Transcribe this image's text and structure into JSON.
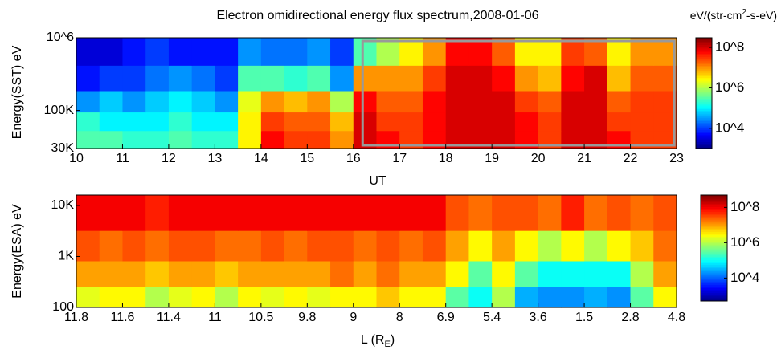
{
  "chart_data": [
    {
      "type": "heatmap",
      "title": "Electron omidirectional energy flux spectrum,2008-01-06",
      "units": "eV/(str-cm",
      "units_sup": "2",
      "units_end": "-s-eV)",
      "xlabel": "UT",
      "ylabel": "Energy(SST) eV",
      "log_y": true,
      "xlim": [
        10,
        23
      ],
      "xticks": [
        10,
        11,
        12,
        13,
        14,
        15,
        16,
        17,
        18,
        19,
        20,
        21,
        22,
        23
      ],
      "ylim": [
        30000,
        1000000
      ],
      "yticks": [
        {
          "value": 30000,
          "label": "30K"
        },
        {
          "value": 100000,
          "label": "100K"
        },
        {
          "value": 1000000,
          "label": "10^6"
        }
      ],
      "highlight_x": [
        16.2,
        22.95
      ],
      "x": [
        10.25,
        10.75,
        11.25,
        11.75,
        12.25,
        12.75,
        13.25,
        13.75,
        14.25,
        14.75,
        15.25,
        15.75,
        16.25,
        16.75,
        17.25,
        17.75,
        18.25,
        18.75,
        19.25,
        19.75,
        20.25,
        20.75,
        21.25,
        21.75,
        22.25,
        22.75
      ],
      "y": [
        40000,
        70000,
        130000,
        270000,
        650000
      ],
      "z": [
        [
          300000.0,
          300000.0,
          200000.0,
          200000.0,
          300000.0,
          200000.0,
          200000.0,
          3000000.0,
          60000000.0,
          30000000.0,
          30000000.0,
          10000000.0,
          100000000.0,
          60000000.0,
          30000000.0,
          60000000.0,
          100000000.0,
          100000000.0,
          100000000.0,
          60000000.0,
          30000000.0,
          100000000.0,
          100000000.0,
          60000000.0,
          30000000.0,
          30000000.0
        ],
        [
          200000.0,
          100000.0,
          100000.0,
          100000.0,
          200000.0,
          100000.0,
          100000.0,
          3000000.0,
          30000000.0,
          20000000.0,
          20000000.0,
          6000000.0,
          100000000.0,
          30000000.0,
          30000000.0,
          60000000.0,
          100000000.0,
          100000000.0,
          100000000.0,
          60000000.0,
          30000000.0,
          100000000.0,
          100000000.0,
          30000000.0,
          30000000.0,
          30000000.0
        ],
        [
          30000.0,
          60000.0,
          30000.0,
          60000.0,
          100000.0,
          60000.0,
          30000.0,
          2000000.0,
          10000000.0,
          6000000.0,
          10000000.0,
          1000000.0,
          60000000.0,
          20000000.0,
          20000000.0,
          60000000.0,
          100000000.0,
          100000000.0,
          100000000.0,
          30000000.0,
          20000000.0,
          100000000.0,
          100000000.0,
          20000000.0,
          30000000.0,
          30000000.0
        ],
        [
          6000.0,
          10000.0,
          10000.0,
          20000.0,
          30000.0,
          20000.0,
          10000.0,
          300000.0,
          300000.0,
          200000.0,
          300000.0,
          30000.0,
          10000000.0,
          10000000.0,
          10000000.0,
          30000000.0,
          100000000.0,
          100000000.0,
          60000000.0,
          10000000.0,
          6000000.0,
          60000000.0,
          100000000.0,
          6000000.0,
          20000000.0,
          20000000.0
        ],
        [
          3000.0,
          3000.0,
          6000.0,
          10000.0,
          6000.0,
          6000.0,
          6000.0,
          30000.0,
          20000.0,
          20000.0,
          30000.0,
          10000.0,
          300000.0,
          1000000.0,
          3000000.0,
          10000000.0,
          60000000.0,
          60000000.0,
          20000000.0,
          3000000.0,
          3000000.0,
          30000000.0,
          20000000.0,
          3000000.0,
          10000000.0,
          10000000.0
        ]
      ],
      "zlim": [
        1000,
        300000000
      ],
      "zticks": [
        {
          "value": 10000,
          "label": "10^4"
        },
        {
          "value": 1000000,
          "label": "10^6"
        },
        {
          "value": 100000000,
          "label": "10^8"
        }
      ]
    },
    {
      "type": "heatmap",
      "xlabel": "L (R",
      "xlabel_sub": "E",
      "xlabel_end": ")",
      "ylabel": "Energy(ESA) eV",
      "log_y": true,
      "xlim": [
        10,
        23
      ],
      "xticks": [
        {
          "value": 10,
          "label": "11.8"
        },
        {
          "value": 11,
          "label": "11.6"
        },
        {
          "value": 12,
          "label": "11.4"
        },
        {
          "value": 13,
          "label": "11"
        },
        {
          "value": 14,
          "label": "10.5"
        },
        {
          "value": 15,
          "label": "9.8"
        },
        {
          "value": 16,
          "label": "9"
        },
        {
          "value": 17,
          "label": "8"
        },
        {
          "value": 18,
          "label": "6.9"
        },
        {
          "value": 19,
          "label": "5.4"
        },
        {
          "value": 20,
          "label": "3.6"
        },
        {
          "value": 21,
          "label": "1.5"
        },
        {
          "value": 22,
          "label": "2.8"
        },
        {
          "value": 23,
          "label": "4.8"
        }
      ],
      "ylim": [
        100,
        16000
      ],
      "yticks": [
        100,
        {
          "value": 1000,
          "label": "1K"
        },
        {
          "value": 10000,
          "label": "10K"
        }
      ],
      "x": [
        10.25,
        10.75,
        11.25,
        11.75,
        12.25,
        12.75,
        13.25,
        13.75,
        14.25,
        14.75,
        15.25,
        15.75,
        16.25,
        16.75,
        17.25,
        17.75,
        18.25,
        18.75,
        19.25,
        19.75,
        20.25,
        20.75,
        21.25,
        21.75,
        22.25,
        22.75
      ],
      "y": [
        150,
        450,
        1500,
        7000
      ],
      "z": [
        [
          2000000.0,
          3000000.0,
          3000000.0,
          1000000.0,
          2000000.0,
          3000000.0,
          1000000.0,
          3000000.0,
          2000000.0,
          3000000.0,
          2000000.0,
          3000000.0,
          3000000.0,
          6000000.0,
          3000000.0,
          3000000.0,
          300000.0,
          100000.0,
          1000000.0,
          30000.0,
          20000.0,
          20000.0,
          30000.0,
          20000.0,
          300000.0,
          3000000.0
        ],
        [
          10000000.0,
          10000000.0,
          10000000.0,
          6000000.0,
          10000000.0,
          10000000.0,
          6000000.0,
          10000000.0,
          10000000.0,
          10000000.0,
          10000000.0,
          20000000.0,
          10000000.0,
          20000000.0,
          10000000.0,
          10000000.0,
          3000000.0,
          300000.0,
          3000000.0,
          300000.0,
          100000.0,
          100000.0,
          100000.0,
          100000.0,
          1000000.0,
          10000000.0
        ],
        [
          30000000.0,
          20000000.0,
          30000000.0,
          20000000.0,
          30000000.0,
          30000000.0,
          20000000.0,
          20000000.0,
          30000000.0,
          20000000.0,
          30000000.0,
          30000000.0,
          20000000.0,
          30000000.0,
          20000000.0,
          30000000.0,
          10000000.0,
          3000000.0,
          10000000.0,
          3000000.0,
          1000000.0,
          3000000.0,
          1000000.0,
          3000000.0,
          6000000.0,
          20000000.0
        ],
        [
          100000000.0,
          100000000.0,
          100000000.0,
          60000000.0,
          100000000.0,
          100000000.0,
          100000000.0,
          100000000.0,
          100000000.0,
          100000000.0,
          100000000.0,
          100000000.0,
          100000000.0,
          100000000.0,
          100000000.0,
          100000000.0,
          30000000.0,
          20000000.0,
          30000000.0,
          30000000.0,
          20000000.0,
          60000000.0,
          20000000.0,
          30000000.0,
          20000000.0,
          30000000.0
        ]
      ],
      "zlim": [
        500,
        500000000
      ],
      "zticks": [
        {
          "value": 10000,
          "label": "10^4"
        },
        {
          "value": 1000000,
          "label": "10^6"
        },
        {
          "value": 100000000,
          "label": "10^8"
        }
      ]
    }
  ]
}
